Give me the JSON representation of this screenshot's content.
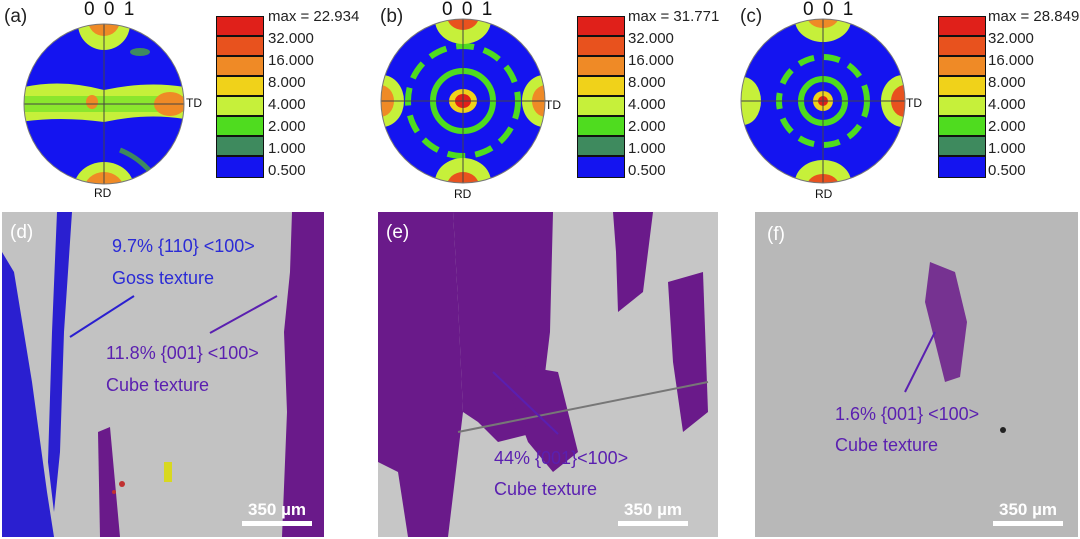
{
  "pole_figures": [
    {
      "label": "(a)",
      "header": "0 0 1",
      "td": "TD",
      "rd": "RD",
      "max": "max = 22.934"
    },
    {
      "label": "(b)",
      "header": "0 0 1",
      "td": "TD",
      "rd": "RD",
      "max": "max = 31.771"
    },
    {
      "label": "(c)",
      "header": "0 0 1",
      "td": "TD",
      "rd": "RD",
      "max": "max = 28.849"
    }
  ],
  "legend_levels": [
    "32.000",
    "16.000",
    "8.000",
    "4.000",
    "2.000",
    "1.000",
    "0.500"
  ],
  "legend_colors": [
    "#e0201a",
    "#e8521e",
    "#ef8a26",
    "#f0d21a",
    "#c6f03a",
    "#4fdc1f",
    "#3e8a5e",
    "#1414f0"
  ],
  "micrographs": [
    {
      "label": "(d)",
      "scale": "350 µm",
      "goss_pct": "9.7% {110} <100>",
      "goss_name": "Goss texture",
      "cube_pct": "11.8% {001} <100>",
      "cube_name": "Cube texture"
    },
    {
      "label": "(e)",
      "scale": "350 µm",
      "cube_pct": "44% {001}<100>",
      "cube_name": "Cube texture"
    },
    {
      "label": "(f)",
      "scale": "350 µm",
      "cube_pct": "1.6% {001} <100>",
      "cube_name": "Cube texture"
    }
  ],
  "colors": {
    "goss": "#2a1fd0",
    "cube": "#6a1a8a",
    "goss_text": "#2b2bd6",
    "cube_text": "#5a1fb0"
  }
}
